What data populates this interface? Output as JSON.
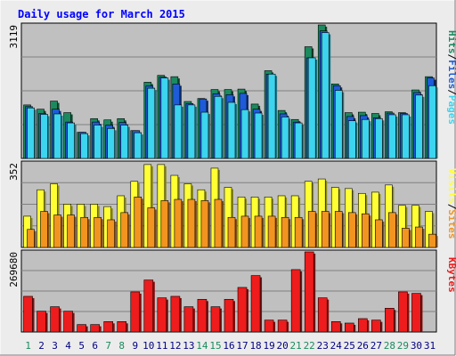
{
  "title": "Daily usage for March 2015",
  "colors": {
    "background": "#ececec",
    "plot_bg": "#c0c0c0",
    "title_text": "#0000ff",
    "hits": "#1b8a5e",
    "files": "#1e5bd8",
    "pages": "#3cd4ee",
    "visits": "#ffff33",
    "sites": "#f29420",
    "kbytes": "#ee1c1c",
    "weekday_label": "#000080",
    "weekend_label": "#1b8a5e"
  },
  "chart_data": [
    {
      "type": "bar",
      "panel": "top",
      "ymax_label": "3119",
      "ylim": [
        0,
        3119
      ],
      "legend": [
        {
          "text": "Pages",
          "color": "#3cd4ee"
        },
        {
          "text": "/",
          "color": "#000000"
        },
        {
          "text": "Files",
          "color": "#1e5bd8"
        },
        {
          "text": "/",
          "color": "#000000"
        },
        {
          "text": "Hits",
          "color": "#1b8a5e"
        }
      ],
      "categories": [
        "1",
        "2",
        "3",
        "4",
        "5",
        "6",
        "7",
        "8",
        "9",
        "10",
        "11",
        "12",
        "13",
        "14",
        "15",
        "16",
        "17",
        "18",
        "19",
        "20",
        "21",
        "22",
        "23",
        "24",
        "25",
        "26",
        "27",
        "28",
        "29",
        "30",
        "31"
      ],
      "series": [
        {
          "name": "Hits",
          "values": [
            1250,
            1150,
            1340,
            1070,
            610,
            930,
            900,
            930,
            650,
            1780,
            1940,
            1910,
            1330,
            1400,
            1610,
            1610,
            1620,
            1270,
            2050,
            1120,
            910,
            2610,
            3119,
            1740,
            1070,
            1080,
            1050,
            1090,
            1070,
            1600,
            1910
          ]
        },
        {
          "name": "Files",
          "values": [
            1210,
            1050,
            1150,
            850,
            610,
            850,
            780,
            840,
            650,
            1690,
            1900,
            1740,
            1280,
            1390,
            1510,
            1490,
            1520,
            1150,
            1970,
            1040,
            850,
            2350,
            2980,
            1700,
            980,
            1000,
            950,
            1060,
            1050,
            1540,
            1880
          ]
        },
        {
          "name": "Pages",
          "values": [
            1180,
            1030,
            1040,
            830,
            580,
            780,
            700,
            780,
            600,
            1640,
            1880,
            1250,
            1250,
            1080,
            1450,
            1310,
            1140,
            1060,
            1970,
            970,
            830,
            2350,
            2940,
            1590,
            880,
            910,
            930,
            1020,
            1020,
            1480,
            1700
          ]
        }
      ]
    },
    {
      "type": "bar",
      "panel": "middle",
      "ymax_label": "352",
      "ylim": [
        0,
        352
      ],
      "legend": [
        {
          "text": "Sites",
          "color": "#f29420"
        },
        {
          "text": "/",
          "color": "#000000"
        },
        {
          "text": "Visits",
          "color": "#ffff33"
        }
      ],
      "categories": [
        "1",
        "2",
        "3",
        "4",
        "5",
        "6",
        "7",
        "8",
        "9",
        "10",
        "11",
        "12",
        "13",
        "14",
        "15",
        "16",
        "17",
        "18",
        "19",
        "20",
        "21",
        "22",
        "23",
        "24",
        "25",
        "26",
        "27",
        "28",
        "29",
        "30",
        "31"
      ],
      "series": [
        {
          "name": "Visits",
          "values": [
            130,
            240,
            265,
            180,
            180,
            180,
            170,
            215,
            275,
            345,
            345,
            300,
            265,
            240,
            330,
            250,
            210,
            210,
            210,
            215,
            215,
            275,
            285,
            250,
            245,
            225,
            230,
            260,
            175,
            175,
            150
          ]
        },
        {
          "name": "Sites",
          "values": [
            75,
            150,
            135,
            135,
            125,
            125,
            115,
            145,
            210,
            165,
            195,
            200,
            200,
            195,
            200,
            125,
            130,
            130,
            130,
            125,
            125,
            150,
            150,
            150,
            145,
            140,
            115,
            145,
            80,
            85,
            55
          ]
        }
      ]
    },
    {
      "type": "bar",
      "panel": "bottom",
      "ymax_label": "269680",
      "ylim": [
        0,
        269680
      ],
      "legend": [
        {
          "text": "KBytes",
          "color": "#ee1c1c"
        }
      ],
      "categories": [
        "1",
        "2",
        "3",
        "4",
        "5",
        "6",
        "7",
        "8",
        "9",
        "10",
        "11",
        "12",
        "13",
        "14",
        "15",
        "16",
        "17",
        "18",
        "19",
        "20",
        "21",
        "22",
        "23",
        "24",
        "25",
        "26",
        "27",
        "28",
        "29",
        "30",
        "31"
      ],
      "series": [
        {
          "name": "KBytes",
          "values": [
            120000,
            70000,
            85000,
            70000,
            25000,
            25000,
            35000,
            35000,
            135000,
            175000,
            115000,
            120000,
            85000,
            110000,
            85000,
            110000,
            150000,
            190000,
            40000,
            40000,
            210000,
            269680,
            115000,
            35000,
            30000,
            45000,
            40000,
            80000,
            135000,
            130000,
            0
          ]
        }
      ]
    }
  ],
  "weekend_days": [
    "1",
    "7",
    "8",
    "14",
    "15",
    "21",
    "22",
    "28",
    "29"
  ]
}
